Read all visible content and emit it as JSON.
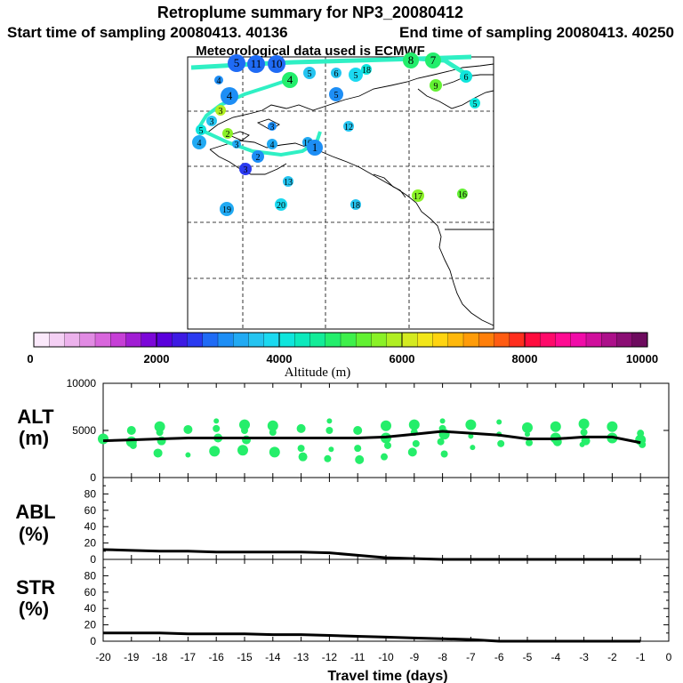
{
  "title": "Retroplume summary for NP3_20080412",
  "start_label": "Start time of sampling 20080413. 40136",
  "end_label": "End time of sampling 20080413. 40250",
  "met_label": "Meteorological data used is ECMWF",
  "colorbar": {
    "tick_labels": [
      "0",
      "2000",
      "4000",
      "6000",
      "8000",
      "10000"
    ],
    "title": "Altitude (m)",
    "min": 0,
    "max": 10000,
    "colors": [
      "#fbe9fb",
      "#f4d0f4",
      "#ecb2ec",
      "#e18be3",
      "#d866dc",
      "#c63fd6",
      "#a11ed4",
      "#7c07d8",
      "#5a00dc",
      "#3d1ae3",
      "#2a3af0",
      "#1f6bf5",
      "#1d8ef5",
      "#21aaf3",
      "#25c4f0",
      "#1bd9f0",
      "#0fe5dc",
      "#0ce9bc",
      "#13ec98",
      "#23ee6c",
      "#3ef04b",
      "#62f132",
      "#8af127",
      "#b0ee22",
      "#d4ea20",
      "#f2e619",
      "#ffd410",
      "#ffb80b",
      "#ff9c09",
      "#ff7f0a",
      "#ff5c12",
      "#ff2e1e",
      "#ff0c3e",
      "#ff0a6a",
      "#ff0b92",
      "#f00ca8",
      "#d00f9c",
      "#ac108a",
      "#8b0e74",
      "#6d0b5e"
    ]
  },
  "map": {
    "path_color": "#2ff0c4",
    "labels": [
      {
        "text": "5",
        "alt": 2900
      },
      {
        "text": "11",
        "alt": 2900
      },
      {
        "text": "10",
        "alt": 2900
      },
      {
        "text": "4",
        "alt": 4800
      },
      {
        "text": "5",
        "alt": 3600
      },
      {
        "text": "6",
        "alt": 3700
      },
      {
        "text": "5",
        "alt": 3900
      },
      {
        "text": "18",
        "alt": 4200
      },
      {
        "text": "8",
        "alt": 4900
      },
      {
        "text": "7",
        "alt": 4900
      },
      {
        "text": "6",
        "alt": 4200
      },
      {
        "text": "5",
        "alt": 4100
      },
      {
        "text": "9",
        "alt": 5400
      },
      {
        "text": "4",
        "alt": 3200
      },
      {
        "text": "4",
        "alt": 3100
      },
      {
        "text": "3",
        "alt": 5900
      },
      {
        "text": "4",
        "alt": 3300
      },
      {
        "text": "5",
        "alt": 4100
      },
      {
        "text": "3",
        "alt": 3500
      },
      {
        "text": "2",
        "alt": 5700
      },
      {
        "text": "3",
        "alt": 3300
      },
      {
        "text": "3",
        "alt": 3200
      },
      {
        "text": "4",
        "alt": 3300
      },
      {
        "text": "10",
        "alt": 3400
      },
      {
        "text": "5",
        "alt": 3200
      },
      {
        "text": "1",
        "alt": 3100
      },
      {
        "text": "12",
        "alt": 3600
      },
      {
        "text": "2",
        "alt": 3000
      },
      {
        "text": "3",
        "alt": 2600
      },
      {
        "text": "13",
        "alt": 3500
      },
      {
        "text": "20",
        "alt": 3800
      },
      {
        "text": "19",
        "alt": 3300
      },
      {
        "text": "18",
        "alt": 3700
      },
      {
        "text": "17",
        "alt": 5600
      },
      {
        "text": "16",
        "alt": 5400
      }
    ]
  },
  "chart_data": [
    {
      "type": "scatter",
      "panel_label": "ALT\n(m)",
      "panel_label_line1": "ALT",
      "panel_label_line2": "(m)",
      "xlim": [
        -20,
        0
      ],
      "ylim": [
        0,
        10000
      ],
      "y_tick_labels": [
        "10000",
        "5000",
        "0"
      ],
      "y_tick_values": [
        10000,
        5000,
        0
      ],
      "median": {
        "x": [
          -20,
          -19,
          -18,
          -17,
          -16,
          -15,
          -14,
          -13,
          -12,
          -11,
          -10,
          -9,
          -8,
          -7,
          -6,
          -5,
          -4,
          -3,
          -2,
          -1
        ],
        "y": [
          3900,
          4000,
          4100,
          4200,
          4200,
          4200,
          4200,
          4200,
          4200,
          4200,
          4300,
          4600,
          4900,
          4700,
          4500,
          4100,
          4100,
          4300,
          4300,
          3700
        ]
      },
      "clusters": [
        {
          "x": -20,
          "alt": [
            3900,
            4100
          ]
        },
        {
          "x": -19,
          "alt": [
            5000,
            3800,
            3400
          ]
        },
        {
          "x": -18,
          "alt": [
            5400,
            4800,
            3900,
            2600
          ]
        },
        {
          "x": -17,
          "alt": [
            5100,
            2400
          ]
        },
        {
          "x": -16,
          "alt": [
            6000,
            5200,
            4200,
            2800
          ]
        },
        {
          "x": -15,
          "alt": [
            5600,
            5000,
            4000,
            2900
          ]
        },
        {
          "x": -14,
          "alt": [
            5500,
            4800,
            2700
          ]
        },
        {
          "x": -13,
          "alt": [
            5200,
            3100,
            2200
          ]
        },
        {
          "x": -12,
          "alt": [
            6000,
            5000,
            3000,
            2000
          ]
        },
        {
          "x": -11,
          "alt": [
            5000,
            3100,
            1900
          ]
        },
        {
          "x": -10,
          "alt": [
            5500,
            4200,
            3400,
            2200
          ]
        },
        {
          "x": -9,
          "alt": [
            5600,
            4800,
            3600,
            2700
          ]
        },
        {
          "x": -8,
          "alt": [
            6000,
            5200,
            4600,
            3800,
            2500
          ]
        },
        {
          "x": -7,
          "alt": [
            5600,
            4400,
            3200
          ]
        },
        {
          "x": -6,
          "alt": [
            5900,
            4600,
            3600
          ]
        },
        {
          "x": -5,
          "alt": [
            5300,
            4600,
            3700
          ]
        },
        {
          "x": -4,
          "alt": [
            5400,
            4200,
            3800
          ]
        },
        {
          "x": -3,
          "alt": [
            5700,
            4800,
            3900,
            3500
          ]
        },
        {
          "x": -2,
          "alt": [
            5400,
            4200
          ]
        },
        {
          "x": -1,
          "alt": [
            4700,
            4000,
            3500
          ]
        }
      ],
      "point_color": "#25ee6a"
    },
    {
      "type": "line",
      "panel_label_line1": "ABL",
      "panel_label_line2": "(%)",
      "xlim": [
        -20,
        0
      ],
      "ylim": [
        0,
        100
      ],
      "y_tick_labels": [
        "80",
        "60",
        "40",
        "20",
        "0"
      ],
      "y_tick_values": [
        80,
        60,
        40,
        20,
        0
      ],
      "x": [
        -20,
        -19,
        -18,
        -17,
        -16,
        -15,
        -14,
        -13,
        -12,
        -11,
        -10,
        -9,
        -8,
        -7,
        -6,
        -5,
        -4,
        -3,
        -2,
        -1
      ],
      "y": [
        12,
        11,
        10,
        10,
        9,
        9,
        9,
        9,
        8,
        5,
        2,
        1,
        0,
        0,
        0,
        0,
        0,
        0,
        0,
        0
      ]
    },
    {
      "type": "line",
      "panel_label_line1": "STR",
      "panel_label_line2": "(%)",
      "xlim": [
        -20,
        0
      ],
      "ylim": [
        0,
        100
      ],
      "y_tick_labels": [
        "80",
        "60",
        "40",
        "20",
        "0"
      ],
      "y_tick_values": [
        80,
        60,
        40,
        20,
        0
      ],
      "x": [
        -20,
        -19,
        -18,
        -17,
        -16,
        -15,
        -14,
        -13,
        -12,
        -11,
        -10,
        -9,
        -8,
        -7,
        -6,
        -5,
        -4,
        -3,
        -2,
        -1
      ],
      "y": [
        10,
        10,
        10,
        9,
        9,
        9,
        8,
        8,
        7,
        6,
        5,
        4,
        3,
        2,
        0,
        0,
        0,
        0,
        0,
        0
      ],
      "x_tick_labels": [
        "-20",
        "-19",
        "-18",
        "-17",
        "-16",
        "-15",
        "-14",
        "-13",
        "-12",
        "-11",
        "-10",
        "-9",
        "-8",
        "-7",
        "-6",
        "-5",
        "-4",
        "-3",
        "-2",
        "-1",
        "0"
      ],
      "xlabel": "Travel time (days)"
    }
  ]
}
